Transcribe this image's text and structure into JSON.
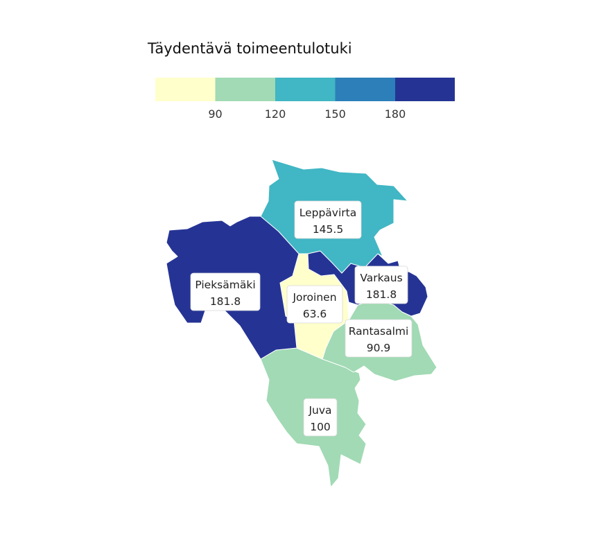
{
  "legend": {
    "title": "Täydentävä toimeentulotuki",
    "ticks": [
      "90",
      "120",
      "150",
      "180"
    ],
    "colors": [
      "#ffffcc",
      "#a1dab4",
      "#41b6c4",
      "#2c7fb8",
      "#253494"
    ],
    "breaks": [
      90,
      120,
      150,
      180
    ]
  },
  "regions": [
    {
      "id": "leppavirta",
      "name": "Leppävirta",
      "value_label": "145.5",
      "value": 145.5,
      "color": "#41b6c4"
    },
    {
      "id": "pieksamaki",
      "name": "Pieksämäki",
      "value_label": "181.8",
      "value": 181.8,
      "color": "#253494"
    },
    {
      "id": "varkaus",
      "name": "Varkaus",
      "value_label": "181.8",
      "value": 181.8,
      "color": "#253494"
    },
    {
      "id": "joroinen",
      "name": "Joroinen",
      "value_label": "63.6",
      "value": 63.6,
      "color": "#ffffcc"
    },
    {
      "id": "rantasalmi",
      "name": "Rantasalmi",
      "value_label": "90.9",
      "value": 90.9,
      "color": "#a1dab4"
    },
    {
      "id": "juva",
      "name": "Juva",
      "value_label": "100",
      "value": 100,
      "color": "#a1dab4"
    }
  ]
}
